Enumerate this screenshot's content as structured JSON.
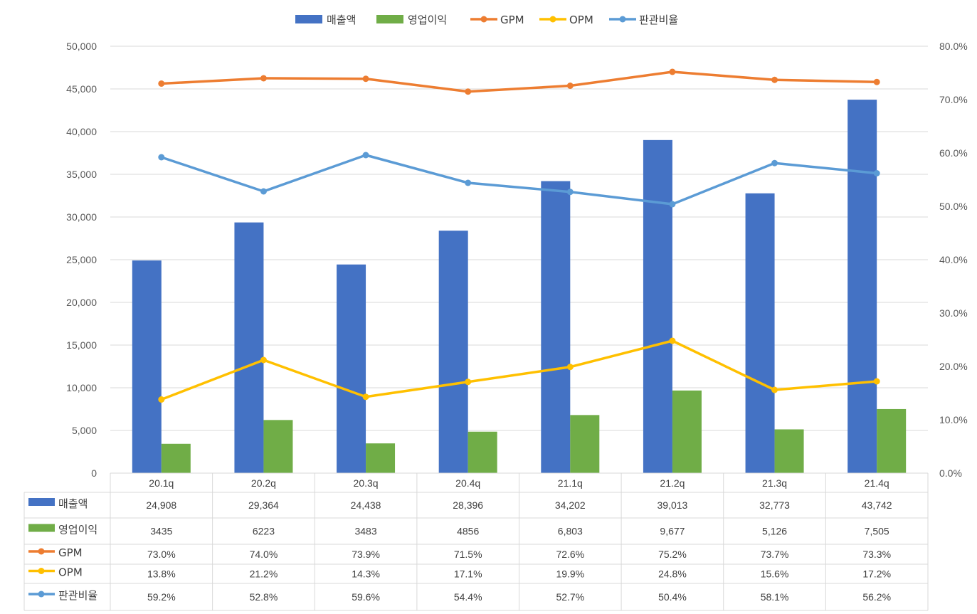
{
  "chart_data": {
    "type": "bar+line",
    "categories": [
      "20.1q",
      "20.2q",
      "20.3q",
      "20.4q",
      "21.1q",
      "21.2q",
      "21.3q",
      "21.4q"
    ],
    "left_axis": {
      "min": 0,
      "max": 50000,
      "step": 5000,
      "tick_labels": [
        "0",
        "5,000",
        "10,000",
        "15,000",
        "20,000",
        "25,000",
        "30,000",
        "35,000",
        "40,000",
        "45,000",
        "50,000"
      ]
    },
    "right_axis": {
      "min": 0,
      "max": 80,
      "step": 10,
      "tick_labels": [
        "0.0%",
        "10.0%",
        "20.0%",
        "30.0%",
        "40.0%",
        "50.0%",
        "60.0%",
        "70.0%",
        "80.0%"
      ]
    },
    "gridlines": true,
    "legend_position": "top",
    "series": [
      {
        "name": "매출액",
        "kind": "bar",
        "axis": "left",
        "color": "#4472C4",
        "values": [
          24908,
          29364,
          24438,
          28396,
          34202,
          39013,
          32773,
          43742
        ],
        "labels": [
          "24,908",
          "29,364",
          "24,438",
          "28,396",
          "34,202",
          "39,013",
          "32,773",
          "43,742"
        ]
      },
      {
        "name": "영업이익",
        "kind": "bar",
        "axis": "left",
        "color": "#70AD47",
        "values": [
          3435,
          6223,
          3483,
          4856,
          6803,
          9677,
          5126,
          7505
        ],
        "labels": [
          "3435",
          "6223",
          "3483",
          "4856",
          "6,803",
          "9,677",
          "5,126",
          "7,505"
        ]
      },
      {
        "name": "GPM",
        "kind": "line",
        "axis": "right",
        "color": "#ED7D31",
        "values": [
          73.0,
          74.0,
          73.9,
          71.5,
          72.6,
          75.2,
          73.7,
          73.3
        ],
        "labels": [
          "73.0%",
          "74.0%",
          "73.9%",
          "71.5%",
          "72.6%",
          "75.2%",
          "73.7%",
          "73.3%"
        ]
      },
      {
        "name": "OPM",
        "kind": "line",
        "axis": "right",
        "color": "#FFC000",
        "values": [
          13.8,
          21.2,
          14.3,
          17.1,
          19.9,
          24.8,
          15.6,
          17.2
        ],
        "labels": [
          "13.8%",
          "21.2%",
          "14.3%",
          "17.1%",
          "19.9%",
          "24.8%",
          "15.6%",
          "17.2%"
        ]
      },
      {
        "name": "판관비율",
        "kind": "line",
        "axis": "right",
        "color": "#5B9BD5",
        "values": [
          59.2,
          52.8,
          59.6,
          54.4,
          52.7,
          50.4,
          58.1,
          56.2
        ],
        "labels": [
          "59.2%",
          "52.8%",
          "59.6%",
          "54.4%",
          "52.7%",
          "50.4%",
          "58.1%",
          "56.2%"
        ]
      }
    ]
  }
}
